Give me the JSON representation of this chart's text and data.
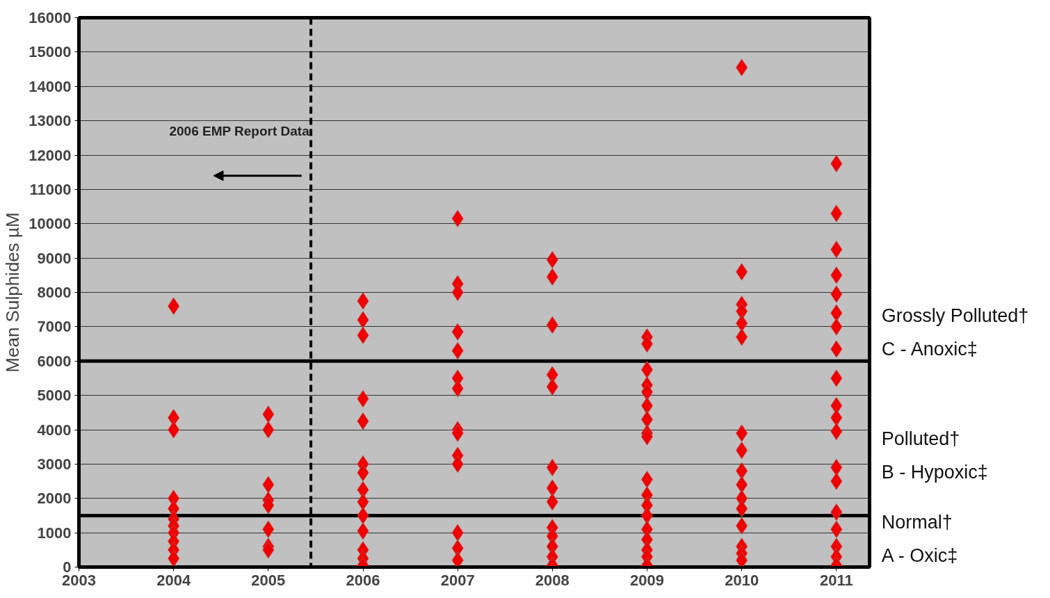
{
  "chart_data": {
    "type": "scatter",
    "ylabel": "Mean Sulphides µM",
    "xlim": [
      2003,
      2011.35
    ],
    "xticks": [
      2003,
      2004,
      2005,
      2006,
      2007,
      2008,
      2009,
      2010,
      2011
    ],
    "ylim": [
      0,
      16000
    ],
    "yticks": [
      0,
      1000,
      2000,
      3000,
      4000,
      5000,
      6000,
      7000,
      8000,
      9000,
      10000,
      11000,
      12000,
      13000,
      14000,
      15000,
      16000
    ],
    "grid": "y",
    "marker": "diamond",
    "series": [
      {
        "color": "#f00000",
        "x": [
          2004,
          2004,
          2004,
          2004,
          2004,
          2004,
          2004,
          2004,
          2004,
          2004,
          2004,
          2005,
          2005,
          2005,
          2005,
          2005,
          2005,
          2005,
          2005,
          2006,
          2006,
          2006,
          2006,
          2006,
          2006,
          2006,
          2006,
          2006,
          2006,
          2006,
          2006,
          2006,
          2006,
          2007,
          2007,
          2007,
          2007,
          2007,
          2007,
          2007,
          2007,
          2007,
          2007,
          2007,
          2007,
          2007,
          2007,
          2008,
          2008,
          2008,
          2008,
          2008,
          2008,
          2008,
          2008,
          2008,
          2008,
          2008,
          2008,
          2008,
          2009,
          2009,
          2009,
          2009,
          2009,
          2009,
          2009,
          2009,
          2009,
          2009,
          2009,
          2009,
          2009,
          2009,
          2009,
          2009,
          2009,
          2009,
          2010,
          2010,
          2010,
          2010,
          2010,
          2010,
          2010,
          2010,
          2010,
          2010,
          2010,
          2010,
          2010,
          2010,
          2010,
          2010,
          2011,
          2011,
          2011,
          2011,
          2011,
          2011,
          2011,
          2011,
          2011,
          2011,
          2011,
          2011,
          2011,
          2011,
          2011,
          2011,
          2011,
          2011,
          2011
        ],
        "values": [
          7600,
          4350,
          4000,
          2000,
          1700,
          1400,
          1200,
          1000,
          750,
          500,
          250,
          4450,
          4000,
          2400,
          1950,
          1800,
          1100,
          600,
          500,
          7750,
          7200,
          6750,
          4900,
          4250,
          3000,
          2750,
          2250,
          1900,
          1500,
          1050,
          500,
          250,
          50,
          10150,
          8250,
          8000,
          6850,
          6300,
          5500,
          5200,
          4000,
          3900,
          3250,
          3000,
          1000,
          550,
          200,
          8950,
          8450,
          7050,
          5600,
          5250,
          2900,
          2300,
          1900,
          1150,
          900,
          600,
          300,
          50,
          6700,
          6500,
          5750,
          5300,
          5100,
          4700,
          4300,
          3900,
          3800,
          2550,
          2100,
          1800,
          1500,
          1100,
          800,
          500,
          300,
          50,
          14550,
          8600,
          7650,
          7450,
          7100,
          6700,
          3900,
          3400,
          2800,
          2400,
          2000,
          1700,
          1200,
          600,
          400,
          200,
          11750,
          10300,
          9250,
          8500,
          7950,
          7400,
          7000,
          6350,
          5500,
          4700,
          4350,
          3950,
          2900,
          2500,
          1600,
          1100,
          600,
          300,
          50
        ]
      }
    ],
    "ref_lines": [
      {
        "axis": "y",
        "value": 1500,
        "color": "#000000",
        "line_style": "solid"
      },
      {
        "axis": "y",
        "value": 6000,
        "color": "#000000",
        "line_style": "solid"
      },
      {
        "axis": "x",
        "value": 2005.45,
        "color": "#000000",
        "line_style": "dashed"
      }
    ],
    "annotations": [
      "2006 EMP Report Data",
      "Grossly Polluted†",
      "C - Anoxic‡",
      "Polluted†",
      "B - Hypoxic‡",
      "Normal†",
      "A - Oxic‡"
    ]
  }
}
